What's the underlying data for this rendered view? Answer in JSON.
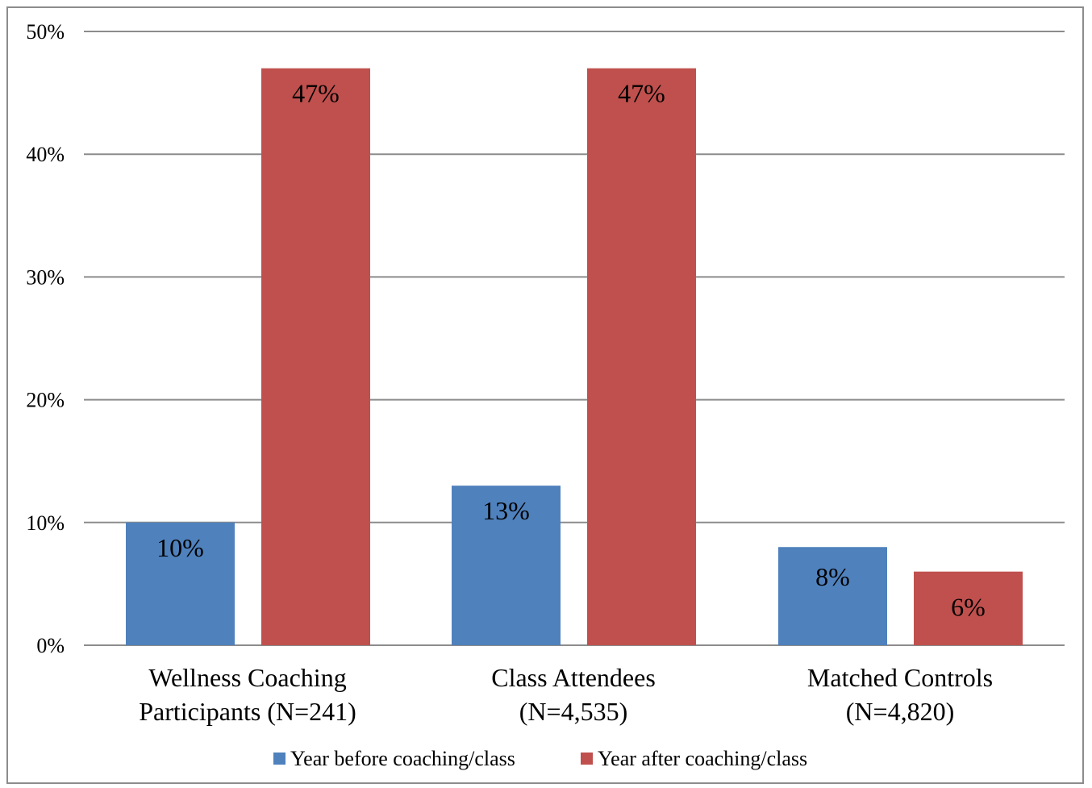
{
  "chart_data": {
    "type": "bar",
    "categories": [
      [
        "Wellness Coaching",
        "Participants  (N=241)"
      ],
      [
        "Class Attendees",
        "(N=4,535)"
      ],
      [
        "Matched Controls",
        "(N=4,820)"
      ]
    ],
    "series": [
      {
        "name": "Year before coaching/class",
        "values": [
          10,
          13,
          8
        ],
        "labels": [
          "10%",
          "13%",
          "8%"
        ],
        "color": "#4f81bd"
      },
      {
        "name": "Year after coaching/class",
        "values": [
          47,
          47,
          6
        ],
        "labels": [
          "47%",
          "47%",
          "6%"
        ],
        "color": "#c0504d"
      }
    ],
    "ylim": [
      0,
      50
    ],
    "yticks": [
      0,
      10,
      20,
      30,
      40,
      50
    ],
    "ytick_labels": [
      "0%",
      "10%",
      "20%",
      "30%",
      "40%",
      "50%"
    ],
    "grid": true,
    "legend_position": "bottom",
    "title": "",
    "xlabel": "",
    "ylabel": ""
  }
}
